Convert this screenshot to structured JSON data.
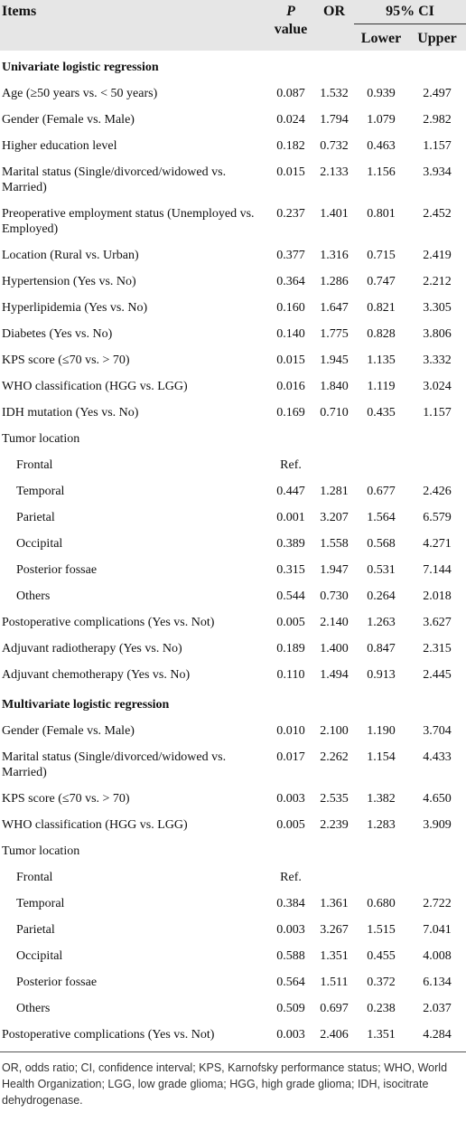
{
  "header": {
    "items": "Items",
    "p_value": {
      "italic": "P",
      "text": "value"
    },
    "or": "OR",
    "ci": "95% CI",
    "lower": "Lower",
    "upper": "Upper"
  },
  "sections": [
    {
      "title": "Univariate logistic regression",
      "rows": [
        {
          "label": "Age (≥50 years vs. < 50 years)",
          "cells": [
            "0.087",
            "1.532",
            "0.939",
            "2.497"
          ]
        },
        {
          "label": "Gender (Female vs. Male)",
          "cells": [
            "0.024",
            "1.794",
            "1.079",
            "2.982"
          ]
        },
        {
          "label": "Higher education level",
          "cells": [
            "0.182",
            "0.732",
            "0.463",
            "1.157"
          ]
        },
        {
          "label": "Marital status (Single/divorced/widowed vs. Married)",
          "cells": [
            "0.015",
            "2.133",
            "1.156",
            "3.934"
          ]
        },
        {
          "label": "Preoperative employment status (Unemployed vs. Employed)",
          "cells": [
            "0.237",
            "1.401",
            "0.801",
            "2.452"
          ]
        },
        {
          "label": "Location (Rural vs. Urban)",
          "cells": [
            "0.377",
            "1.316",
            "0.715",
            "2.419"
          ]
        },
        {
          "label": "Hypertension (Yes vs. No)",
          "cells": [
            "0.364",
            "1.286",
            "0.747",
            "2.212"
          ]
        },
        {
          "label": "Hyperlipidemia (Yes vs. No)",
          "cells": [
            "0.160",
            "1.647",
            "0.821",
            "3.305"
          ]
        },
        {
          "label": "Diabetes (Yes vs. No)",
          "cells": [
            "0.140",
            "1.775",
            "0.828",
            "3.806"
          ]
        },
        {
          "label": "KPS score (≤70 vs. > 70)",
          "cells": [
            "0.015",
            "1.945",
            "1.135",
            "3.332"
          ]
        },
        {
          "label": "WHO classification (HGG vs. LGG)",
          "cells": [
            "0.016",
            "1.840",
            "1.119",
            "3.024"
          ]
        },
        {
          "label": "IDH mutation (Yes vs. No)",
          "cells": [
            "0.169",
            "0.710",
            "0.435",
            "1.157"
          ]
        },
        {
          "label": "Tumor location",
          "rows": [
            {
              "label": "Frontal",
              "cells": [
                "Ref."
              ]
            },
            {
              "label": "Temporal",
              "cells": [
                "0.447",
                "1.281",
                "0.677",
                "2.426"
              ]
            },
            {
              "label": "Parietal",
              "cells": [
                "0.001",
                "3.207",
                "1.564",
                "6.579"
              ]
            },
            {
              "label": "Occipital",
              "cells": [
                "0.389",
                "1.558",
                "0.568",
                "4.271"
              ]
            },
            {
              "label": "Posterior fossae",
              "cells": [
                "0.315",
                "1.947",
                "0.531",
                "7.144"
              ]
            },
            {
              "label": "Others",
              "cells": [
                "0.544",
                "0.730",
                "0.264",
                "2.018"
              ]
            }
          ]
        },
        {
          "label": "Postoperative complications (Yes vs. Not)",
          "cells": [
            "0.005",
            "2.140",
            "1.263",
            "3.627"
          ]
        },
        {
          "label": "Adjuvant radiotherapy (Yes vs. No)",
          "cells": [
            "0.189",
            "1.400",
            "0.847",
            "2.315"
          ]
        },
        {
          "label": "Adjuvant chemotherapy (Yes vs. No)",
          "cells": [
            "0.110",
            "1.494",
            "0.913",
            "2.445"
          ]
        }
      ]
    },
    {
      "title": "Multivariate logistic regression",
      "rows": [
        {
          "label": "Gender (Female vs. Male)",
          "cells": [
            "0.010",
            "2.100",
            "1.190",
            "3.704"
          ]
        },
        {
          "label": "Marital status (Single/divorced/widowed vs. Married)",
          "cells": [
            "0.017",
            "2.262",
            "1.154",
            "4.433"
          ]
        },
        {
          "label": "KPS score (≤70 vs. > 70)",
          "cells": [
            "0.003",
            "2.535",
            "1.382",
            "4.650"
          ]
        },
        {
          "label": "WHO classification (HGG vs. LGG)",
          "cells": [
            "0.005",
            "2.239",
            "1.283",
            "3.909"
          ]
        },
        {
          "label": "Tumor location",
          "rows": [
            {
              "label": "Frontal",
              "cells": [
                "Ref."
              ]
            },
            {
              "label": "Temporal",
              "cells": [
                "0.384",
                "1.361",
                "0.680",
                "2.722"
              ]
            },
            {
              "label": "Parietal",
              "cells": [
                "0.003",
                "3.267",
                "1.515",
                "7.041"
              ]
            },
            {
              "label": "Occipital",
              "cells": [
                "0.588",
                "1.351",
                "0.455",
                "4.008"
              ]
            },
            {
              "label": "Posterior fossae",
              "cells": [
                "0.564",
                "1.511",
                "0.372",
                "6.134"
              ]
            },
            {
              "label": "Others",
              "cells": [
                "0.509",
                "0.697",
                "0.238",
                "2.037"
              ]
            }
          ]
        },
        {
          "label": "Postoperative complications (Yes vs. Not)",
          "cells": [
            "0.003",
            "2.406",
            "1.351",
            "4.284"
          ]
        }
      ]
    }
  ],
  "footnote": "OR, odds ratio; CI, confidence interval; KPS, Karnofsky performance status; WHO, World Health Organization; LGG, low grade glioma; HGG, high grade glioma; IDH, isocitrate dehydrogenase."
}
